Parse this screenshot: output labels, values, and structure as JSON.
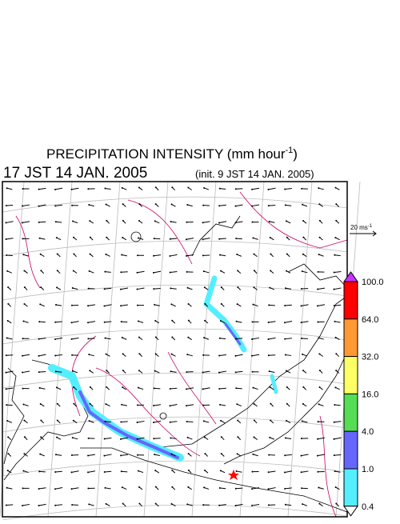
{
  "header": {
    "title": {
      "text": "PRECIPITATION INTENSITY (mm hour",
      "superscript": "-1",
      "close": ")"
    },
    "valid_time": "17 JST 14 JAN. 2005",
    "init_time": "(init. 9 JST 14 JAN. 2005)"
  },
  "wind_legend": {
    "text": "20 ms",
    "superscript": "-1"
  },
  "colorbar": {
    "labels": [
      "100.0",
      "64.0",
      "32.0",
      "16.0",
      "4.0",
      "1.0",
      "0.4"
    ],
    "colors": [
      "#cc33ff",
      "#ff0000",
      "#ff9933",
      "#ffff66",
      "#55dd55",
      "#6666ff",
      "#55eeff",
      "#ffffff"
    ]
  }
}
